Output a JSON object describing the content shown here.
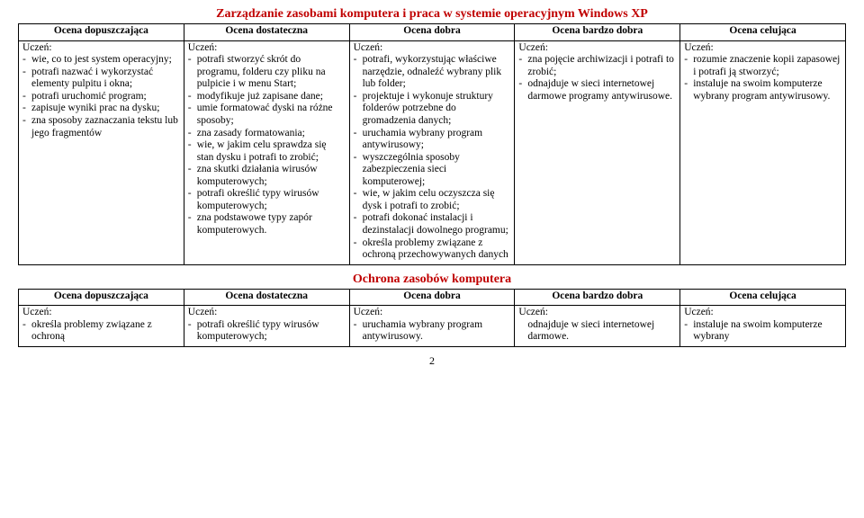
{
  "colors": {
    "title": "#c00000",
    "border": "#000000",
    "text": "#000000",
    "background": "#ffffff"
  },
  "section1": {
    "title": "Zarządzanie zasobami komputera i praca w systemie operacyjnym Windows XP",
    "headers": [
      "Ocena dopuszczająca",
      "Ocena dostateczna",
      "Ocena dobra",
      "Ocena bardzo dobra",
      "Ocena celująca"
    ],
    "lead": "Uczeń:",
    "col0": [
      "wie, co to jest system operacyjny;",
      "potrafi nazwać i wykorzystać elementy pulpitu i okna;",
      "potrafi uruchomić program;",
      "zapisuje wyniki prac na dysku;",
      "zna sposoby zaznaczania tekstu lub jego fragmentów"
    ],
    "col1": [
      "potrafi stworzyć skrót do programu, folderu czy pliku na pulpicie i w menu Start;",
      "modyfikuje już zapisane dane;",
      "umie formatować dyski na różne sposoby;",
      "zna zasady formatowania;",
      "wie, w jakim celu sprawdza się stan dysku i potrafi to zrobić;",
      "zna skutki działania wirusów komputerowych;",
      "potrafi określić typy wirusów komputerowych;",
      "zna podstawowe typy zapór komputerowych."
    ],
    "col2": [
      "potrafi, wykorzystując właściwe narzędzie, odnaleźć wybrany plik lub folder;",
      "projektuje i wykonuje struktury folderów potrzebne do gromadzenia danych;",
      "uruchamia wybrany program antywirusowy;",
      "wyszczególnia sposoby zabezpieczenia sieci komputerowej;",
      "wie, w jakim celu oczyszcza się dysk i potrafi to zrobić;",
      "potrafi dokonać instalacji i dezinstalacji dowolnego programu;",
      "określa problemy związane z ochroną przechowywanych danych"
    ],
    "col3": [
      "zna pojęcie archiwizacji i potrafi to zrobić;",
      "odnajduje w sieci internetowej darmowe programy antywirusowe."
    ],
    "col4": [
      "rozumie znaczenie kopii zapasowej i potrafi ją stworzyć;",
      "instaluje na swoim komputerze wybrany program antywirusowy."
    ]
  },
  "section2": {
    "title": "Ochrona zasobów komputera",
    "headers": [
      "Ocena dopuszczająca",
      "Ocena dostateczna",
      "Ocena dobra",
      "Ocena bardzo dobra",
      "Ocena celująca"
    ],
    "lead": "Uczeń:",
    "col0": [
      "określa problemy związane z ochroną"
    ],
    "col1": [
      "potrafi określić typy wirusów komputerowych;"
    ],
    "col2": [
      "uruchamia wybrany program antywirusowy."
    ],
    "col3_nodash": [
      "odnajduje w sieci internetowej darmowe."
    ],
    "col4": [
      "instaluje na swoim komputerze wybrany"
    ]
  },
  "page_number": "2"
}
